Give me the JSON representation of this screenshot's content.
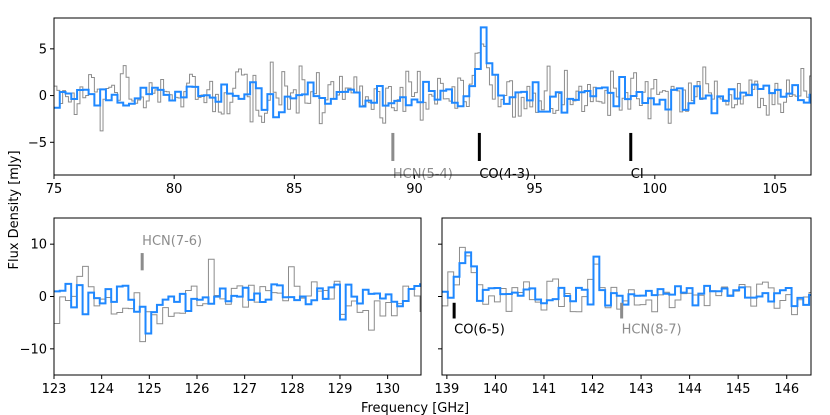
{
  "figure": {
    "xlabel": "Frequency [GHz]",
    "ylabel": "Flux Density [mJy]",
    "colors": {
      "binned": "#1f88ff",
      "raw": "#8c8c8c",
      "marker_bright": "#000000",
      "marker_faint": "#8c8c8c"
    }
  },
  "chart_data": [
    {
      "id": "top",
      "type": "line",
      "step": true,
      "xlim": [
        75.0,
        106.5
      ],
      "ylim": [
        -8.5,
        8.3
      ],
      "xticks": [
        75,
        80,
        85,
        90,
        95,
        100,
        105
      ],
      "yticks": [
        -5,
        0,
        5
      ],
      "series": [
        {
          "name": "raw spectrum",
          "color": "#8c8c8c",
          "bin": 0.12,
          "amp": 2.4,
          "seed": 11
        },
        {
          "name": "binned spectrum",
          "color": "#1f88ff",
          "bin": 0.24,
          "amp": 1.4,
          "seed": 23
        }
      ],
      "features": [
        {
          "x": 92.8,
          "peak": 6.5,
          "width": 0.3
        }
      ],
      "lines": [
        {
          "label": "HCN(5-4)",
          "x": 89.1,
          "bright": false
        },
        {
          "label": "CO(4-3)",
          "x": 92.7,
          "bright": true
        },
        {
          "label": "CI",
          "x": 99.0,
          "bright": true
        }
      ]
    },
    {
      "id": "bottom-left",
      "type": "line",
      "step": true,
      "xlim": [
        123.0,
        130.7
      ],
      "ylim": [
        -15.0,
        15.0
      ],
      "xticks": [
        123,
        124,
        125,
        126,
        127,
        128,
        129,
        130
      ],
      "yticks": [
        -10,
        0,
        10
      ],
      "series": [
        {
          "name": "raw spectrum",
          "color": "#8c8c8c",
          "bin": 0.12,
          "amp": 4.5,
          "seed": 37
        },
        {
          "name": "binned spectrum",
          "color": "#1f88ff",
          "bin": 0.12,
          "amp": 2.6,
          "seed": 41
        }
      ],
      "features": [
        {
          "x": 124.9,
          "peak": -6.0,
          "width": 0.15
        }
      ],
      "lines": [
        {
          "label": "HCN(7-6)",
          "x": 124.85,
          "bright": false
        }
      ]
    },
    {
      "id": "bottom-right",
      "type": "line",
      "step": true,
      "xlim": [
        138.9,
        146.5
      ],
      "ylim": [
        -15.0,
        15.0
      ],
      "xticks": [
        139,
        140,
        141,
        142,
        143,
        144,
        145,
        146
      ],
      "yticks": [],
      "series": [
        {
          "name": "raw spectrum",
          "color": "#8c8c8c",
          "bin": 0.12,
          "amp": 3.0,
          "seed": 53
        },
        {
          "name": "binned spectrum",
          "color": "#1f88ff",
          "bin": 0.12,
          "amp": 1.8,
          "seed": 59
        }
      ],
      "features": [
        {
          "x": 139.35,
          "peak": 8.0,
          "width": 0.2
        },
        {
          "x": 142.05,
          "peak": 8.5,
          "width": 0.06
        }
      ],
      "lines": [
        {
          "label": "CO(6-5)",
          "x": 139.15,
          "bright": true
        },
        {
          "label": "HCN(8-7)",
          "x": 142.6,
          "bright": false
        }
      ]
    }
  ]
}
